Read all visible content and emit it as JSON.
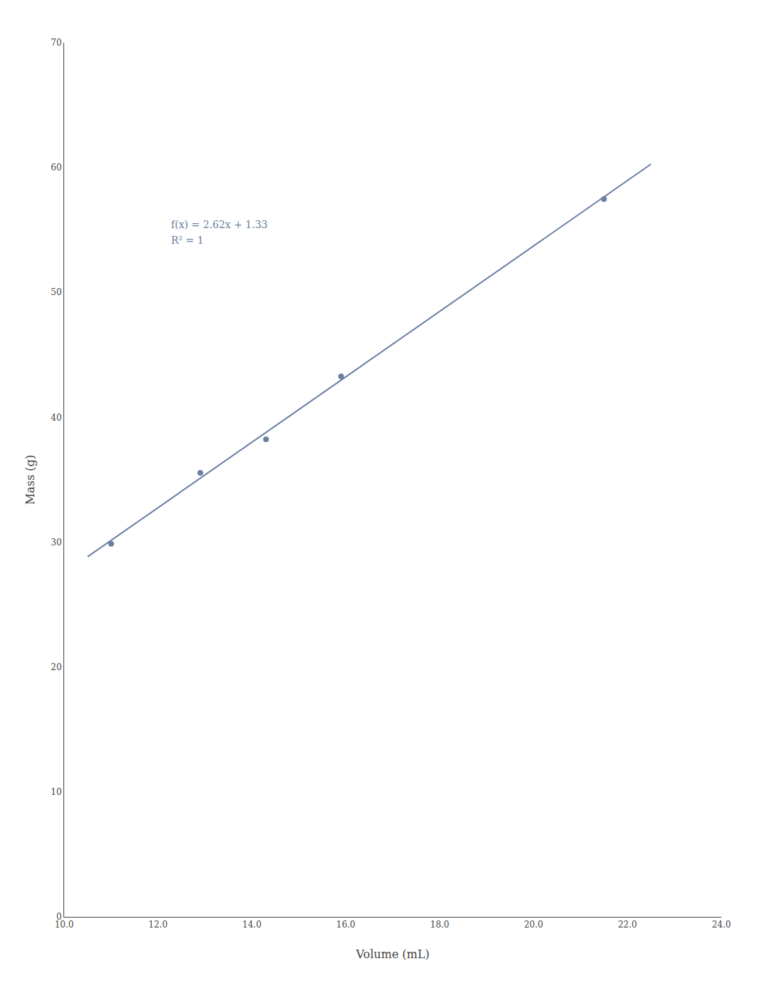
{
  "chart_data": {
    "type": "scatter",
    "xlabel": "Volume (mL)",
    "ylabel": "Mass (g)",
    "color": "#6b7fa3",
    "series": [
      {
        "type": "scatter",
        "marker": "circle",
        "color": "#6b7fa3",
        "x": [
          11.0,
          12.9,
          14.3,
          15.9,
          21.5
        ],
        "values": [
          29.8792,
          35.5588,
          38.239,
          43.2848,
          57.4882
        ]
      },
      {
        "type": "line",
        "line_style": "solid",
        "color": "#6b7fa3",
        "x": [
          10.5,
          22.5
        ],
        "values": [
          28.84,
          60.28
        ]
      }
    ],
    "annotations": [
      "f(x) = 2.62x + 1.33",
      "R² = 1"
    ],
    "xlim": [
      10.0,
      24.0
    ],
    "ylim": [
      0,
      70
    ],
    "xticks": [
      {
        "value": 10,
        "label": "10.0"
      },
      {
        "value": 12,
        "label": "12.0"
      },
      {
        "value": 14,
        "label": "14.0"
      },
      {
        "value": 16,
        "label": "16.0"
      },
      {
        "value": 18,
        "label": "18.0"
      },
      {
        "value": 20,
        "label": "20.0"
      },
      {
        "value": 22,
        "label": "22.0"
      },
      {
        "value": 24,
        "label": "24.0"
      }
    ],
    "yticks": [
      0,
      10,
      20,
      30,
      40,
      50,
      60,
      70
    ],
    "grid": false
  }
}
